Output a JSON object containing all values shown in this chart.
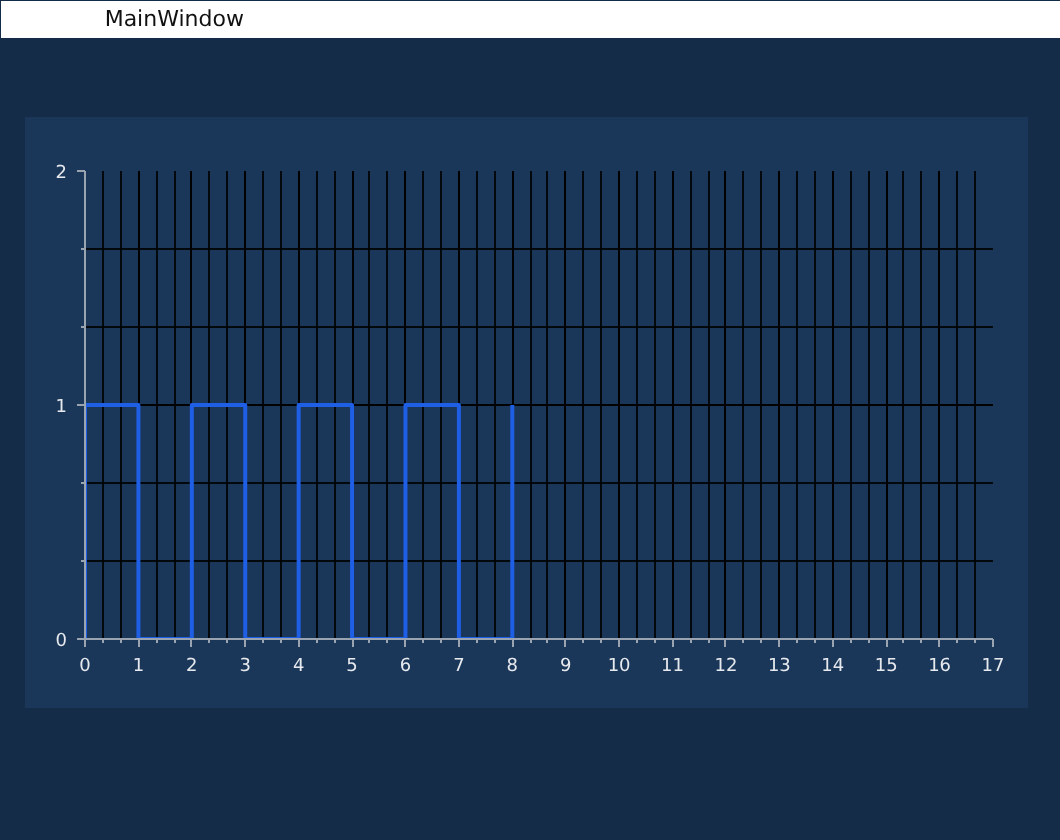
{
  "chart_data": {
    "type": "step",
    "title": "MainWindow",
    "x": [
      0,
      0,
      1,
      2,
      3,
      4,
      5,
      6,
      7,
      8
    ],
    "series": [
      {
        "color": "#1f5fe6",
        "values": [
          0,
          1,
          0,
          1,
          0,
          1,
          0,
          1,
          0,
          1
        ]
      }
    ],
    "xlim": [
      0,
      17
    ],
    "ylim": [
      0,
      2
    ],
    "xticks": [
      0,
      1,
      2,
      3,
      4,
      5,
      6,
      7,
      8,
      9,
      10,
      11,
      12,
      13,
      14,
      15,
      16,
      17
    ],
    "yticks": [
      0,
      1,
      2
    ],
    "grid": true
  }
}
